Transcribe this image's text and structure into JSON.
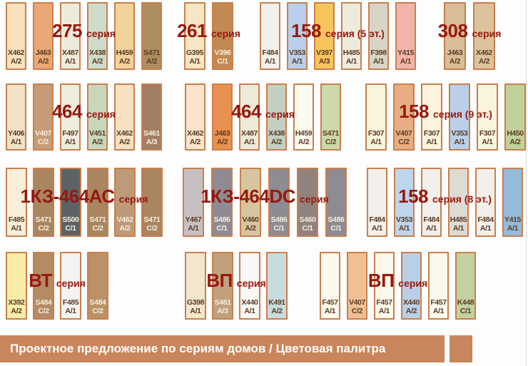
{
  "title_bar": {
    "text": "Проектное предложение по сериям домов / Цветовая палитра"
  },
  "colors": {
    "background": "#fdfdfd",
    "swatch_border": "#c97f4d",
    "series_title": "#97180f",
    "label_dark": "#5a3a23",
    "label_light": "#f5eedd",
    "footer_bar": "#c9855c",
    "footer_text": "#ffffff"
  },
  "chart_data": {
    "type": "table",
    "title": "Проектное предложение по сериям домов / Цветовая палитра",
    "description": "Палитра цветов фасадов по сериям домов: группы образцов с кодами красок",
    "groups": [
      {
        "name": "275",
        "suffix": "серия",
        "swatches": [
          {
            "code": "X462",
            "variant": "А/2",
            "color": "#f8e2bd",
            "light": false
          },
          {
            "code": "J463",
            "variant": "А/2",
            "color": "#e9a876",
            "light": false
          },
          {
            "code": "X487",
            "variant": "А/1",
            "color": "#efebdc",
            "light": false
          },
          {
            "code": "X438",
            "variant": "А/2",
            "color": "#cddcca",
            "light": false
          },
          {
            "code": "H459",
            "variant": "А/2",
            "color": "#f2d29b",
            "light": false
          },
          {
            "code": "S471",
            "variant": "А/2",
            "color": "#ad8d60",
            "light": false
          }
        ]
      },
      {
        "name": "261",
        "suffix": "серия",
        "swatches": [
          {
            "code": "G395",
            "variant": "А/1",
            "color": "#f6e6c3",
            "light": false
          },
          {
            "code": "V396",
            "variant": "С/1",
            "color": "#c28a52",
            "light": true
          }
        ]
      },
      {
        "name": "158",
        "suffix": "серия (5 эт.)",
        "swatches": [
          {
            "code": "F484",
            "variant": "А/1",
            "color": "#f1f0ec",
            "light": false
          },
          {
            "code": "V353",
            "variant": "А/1",
            "color": "#b9cfec",
            "light": false
          },
          {
            "code": "V397",
            "variant": "А/3",
            "color": "#f6c65c",
            "light": false
          },
          {
            "code": "H485",
            "variant": "А/1",
            "color": "#eeeade",
            "light": false
          },
          {
            "code": "F398",
            "variant": "А/1",
            "color": "#d7d5c6",
            "light": false
          },
          {
            "code": "Y415",
            "variant": "А/1",
            "color": "#f1b4ab",
            "light": false
          }
        ]
      },
      {
        "name": "308",
        "suffix": "серия",
        "swatches": [
          {
            "code": "J463",
            "variant": "А/2",
            "color": "#d9bd96",
            "light": false
          },
          {
            "code": "X462",
            "variant": "А/2",
            "color": "#ddc29e",
            "light": false
          }
        ]
      },
      {
        "name": "464",
        "suffix": "серия",
        "swatches": [
          {
            "code": "Y406",
            "variant": "А/1",
            "color": "#f1e2c6",
            "light": false
          },
          {
            "code": "V407",
            "variant": "С/2",
            "color": "#c69c76",
            "light": true
          },
          {
            "code": "F497",
            "variant": "А/1",
            "color": "#efecdd",
            "light": false
          },
          {
            "code": "V451",
            "variant": "А/2",
            "color": "#c6d7bd",
            "light": false
          },
          {
            "code": "X462",
            "variant": "А/2",
            "color": "#f5e0c2",
            "light": false
          },
          {
            "code": "S461",
            "variant": "А/3",
            "color": "#a17f63",
            "light": true
          }
        ]
      },
      {
        "name": "464",
        "suffix": "серия",
        "swatches": [
          {
            "code": "X462",
            "variant": "А/2",
            "color": "#f8e5cb",
            "light": false
          },
          {
            "code": "J463",
            "variant": "А/2",
            "color": "#e8914f",
            "light": false
          },
          {
            "code": "X487",
            "variant": "А/1",
            "color": "#eeead9",
            "light": false
          },
          {
            "code": "X438",
            "variant": "А/2",
            "color": "#c3cfc2",
            "light": false
          },
          {
            "code": "H459",
            "variant": "А/2",
            "color": "#fbfaf0",
            "light": false
          },
          {
            "code": "S471",
            "variant": "С/2",
            "color": "#ccd8a7",
            "light": false
          }
        ]
      },
      {
        "name": "158",
        "suffix": "серия (9 эт.)",
        "swatches": [
          {
            "code": "F307",
            "variant": "А/1",
            "color": "#faf3dd",
            "light": false
          },
          {
            "code": "V407",
            "variant": "С/2",
            "color": "#e7ae81",
            "light": false
          },
          {
            "code": "F307",
            "variant": "А/1",
            "color": "#faf3dd",
            "light": false
          },
          {
            "code": "V353",
            "variant": "А/1",
            "color": "#bad0e8",
            "light": false
          },
          {
            "code": "F307",
            "variant": "А/1",
            "color": "#faf3dd",
            "light": false
          },
          {
            "code": "H450",
            "variant": "А/2",
            "color": "#c2d199",
            "light": false
          }
        ]
      },
      {
        "name": "1КЗ-464АС",
        "suffix": "серия",
        "swatches": [
          {
            "code": "F485",
            "variant": "А/1",
            "color": "#f7efd9",
            "light": false
          },
          {
            "code": "S471",
            "variant": "С/2",
            "color": "#a98560",
            "light": true
          },
          {
            "code": "S500",
            "variant": "С/1",
            "color": "#5d6365",
            "light": true
          },
          {
            "code": "S471",
            "variant": "С/2",
            "color": "#a98560",
            "light": true
          },
          {
            "code": "V462",
            "variant": "А/2",
            "color": "#bf9a79",
            "light": true
          },
          {
            "code": "S471",
            "variant": "С/2",
            "color": "#a98560",
            "light": true
          }
        ]
      },
      {
        "name": "1КЗ-464DC",
        "suffix": "серия",
        "swatches": [
          {
            "code": "Y467",
            "variant": "А/1",
            "color": "#c7c0c3",
            "light": false
          },
          {
            "code": "S486",
            "variant": "С/1",
            "color": "#8e8b92",
            "light": true
          },
          {
            "code": "V460",
            "variant": "А/2",
            "color": "#d6c59f",
            "light": false
          },
          {
            "code": "S486",
            "variant": "С/1",
            "color": "#8e8b92",
            "light": true
          },
          {
            "code": "S460",
            "variant": "С/1",
            "color": "#91827d",
            "light": true
          },
          {
            "code": "S486",
            "variant": "С/1",
            "color": "#8e8b92",
            "light": true
          }
        ]
      },
      {
        "name": "158",
        "suffix": "серия (8 эт.)",
        "swatches": [
          {
            "code": "F484",
            "variant": "А/1",
            "color": "#f1f0ec",
            "light": false
          },
          {
            "code": "V353",
            "variant": "А/1",
            "color": "#bed5ee",
            "light": false
          },
          {
            "code": "F484",
            "variant": "А/1",
            "color": "#f1f0ec",
            "light": false
          },
          {
            "code": "H485",
            "variant": "А/1",
            "color": "#dcdbd4",
            "light": false
          },
          {
            "code": "F484",
            "variant": "А/1",
            "color": "#f1f0ec",
            "light": false
          },
          {
            "code": "Y415",
            "variant": "А/1",
            "color": "#94bbd9",
            "light": false
          }
        ]
      },
      {
        "name": "ВТ",
        "suffix": "серия",
        "swatches": [
          {
            "code": "X392",
            "variant": "А/2",
            "color": "#f7eda9",
            "light": false
          },
          {
            "code": "S484",
            "variant": "С/2",
            "color": "#b38c64",
            "light": true
          },
          {
            "code": "F485",
            "variant": "А/1",
            "color": "#f4f3f1",
            "light": false
          },
          {
            "code": "S484",
            "variant": "С/2",
            "color": "#bb9168",
            "light": true
          }
        ]
      },
      {
        "name": "ВП",
        "suffix": "серия",
        "swatches": [
          {
            "code": "G398",
            "variant": "А/1",
            "color": "#f2e6cb",
            "light": false
          },
          {
            "code": "S461",
            "variant": "А/3",
            "color": "#bfa17f",
            "light": true
          },
          {
            "code": "X440",
            "variant": "А/1",
            "color": "#f7f7f5",
            "light": false
          },
          {
            "code": "K491",
            "variant": "А/2",
            "color": "#c9dbdf",
            "light": false
          }
        ]
      },
      {
        "name": "ВП",
        "suffix": "серия",
        "swatches": [
          {
            "code": "F457",
            "variant": "А/1",
            "color": "#fbf9ec",
            "light": false
          },
          {
            "code": "V407",
            "variant": "С/2",
            "color": "#f0c094",
            "light": false
          },
          {
            "code": "F457",
            "variant": "А/1",
            "color": "#fbf9ec",
            "light": false
          },
          {
            "code": "X440",
            "variant": "А/2",
            "color": "#b9cfe6",
            "light": false
          },
          {
            "code": "F457",
            "variant": "А/1",
            "color": "#fbf9ec",
            "light": false
          },
          {
            "code": "K448",
            "variant": "С/1",
            "color": "#c3d1a1",
            "light": false
          }
        ]
      }
    ]
  }
}
